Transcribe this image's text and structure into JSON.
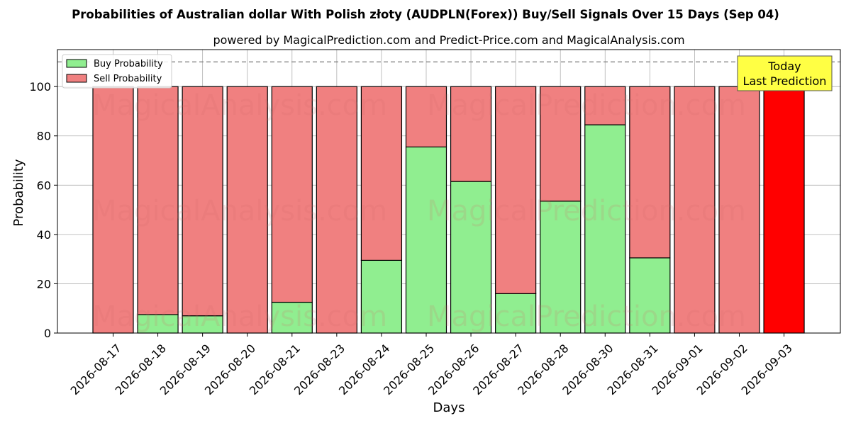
{
  "chart_data": {
    "type": "bar",
    "stacked": true,
    "title": "Probabilities of Australian dollar With Polish złoty (AUDPLN(Forex)) Buy/Sell Signals Over 15 Days (Sep 04)",
    "subtitle": "powered by MagicalPrediction.com and Predict-Price.com and MagicalAnalysis.com",
    "xlabel": "Days",
    "ylabel": "Probability",
    "ylim": [
      0,
      115
    ],
    "yticks": [
      0,
      20,
      40,
      60,
      80,
      100
    ],
    "reference_line": 110,
    "grid": true,
    "legend_position": "top-left",
    "categories": [
      "2026-08-17",
      "2026-08-18",
      "2026-08-19",
      "2026-08-20",
      "2026-08-21",
      "2026-08-23",
      "2026-08-24",
      "2026-08-25",
      "2026-08-26",
      "2026-08-27",
      "2026-08-28",
      "2026-08-30",
      "2026-08-31",
      "2026-09-01",
      "2026-09-02",
      "2026-09-03"
    ],
    "series": [
      {
        "name": "Buy Probability",
        "color": "#90ee90",
        "values": [
          0,
          7.5,
          7,
          0,
          12.5,
          0,
          29.5,
          75.5,
          61.5,
          16,
          53.5,
          84.5,
          30.5,
          0,
          0,
          0
        ]
      },
      {
        "name": "Sell Probability",
        "color": "#f08080",
        "values": [
          100,
          92.5,
          93,
          100,
          87.5,
          100,
          70.5,
          24.5,
          38.5,
          84,
          46.5,
          15.5,
          69.5,
          100,
          100,
          100
        ]
      }
    ],
    "highlight": {
      "index": 15,
      "color": "#ff0000",
      "label_lines": [
        "Today",
        "Last Prediction"
      ],
      "label_color": "#ffff44"
    },
    "watermarks": [
      "MagicalAnalysis.com",
      "MagicalPrediction.com"
    ]
  }
}
